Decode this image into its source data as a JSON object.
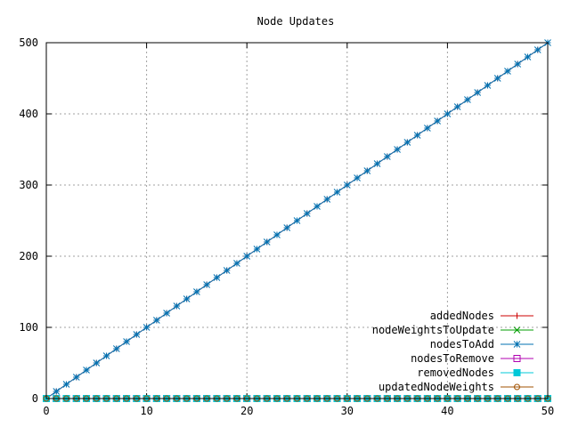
{
  "chart_data": {
    "type": "line",
    "title": "Node Updates",
    "xlabel": "",
    "ylabel": "",
    "xlim": [
      0,
      50
    ],
    "ylim": [
      0,
      500
    ],
    "xticks": [
      "0",
      "10",
      "20",
      "30",
      "40",
      "50"
    ],
    "yticks": [
      "0",
      "100",
      "200",
      "300",
      "400",
      "500"
    ],
    "grid": true,
    "legend_position": "bottom-right",
    "x_start": 0,
    "x_end": 50,
    "x_step": 1,
    "series": [
      {
        "name": "addedNodes",
        "color": "#cc0000",
        "marker": "plus",
        "slope": 10
      },
      {
        "name": "nodeWeightsToUpdate",
        "color": "#009e00",
        "marker": "cross",
        "slope": 0
      },
      {
        "name": "nodesToAdd",
        "color": "#0072b2",
        "marker": "star",
        "slope": 10
      },
      {
        "name": "nodesToRemove",
        "color": "#b000b0",
        "marker": "open-square",
        "slope": 0
      },
      {
        "name": "removedNodes",
        "color": "#00c8d8",
        "marker": "filled-square",
        "slope": 0
      },
      {
        "name": "updatedNodeWeights",
        "color": "#a05000",
        "marker": "open-circle",
        "slope": 0
      }
    ]
  }
}
